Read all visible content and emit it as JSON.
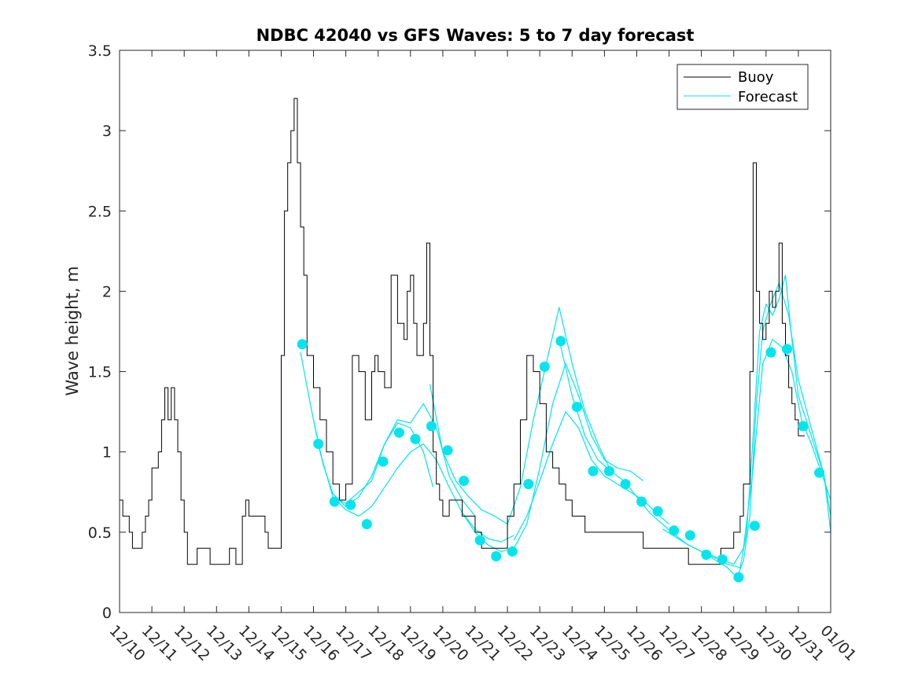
{
  "chart_data": {
    "type": "line",
    "title": "NDBC 42040 vs GFS Waves: 5 to 7 day forecast",
    "xlabel": "",
    "ylabel": "Wave height, m",
    "xlim": [
      0,
      22
    ],
    "ylim": [
      0,
      3.5
    ],
    "x_unit": "days since 12/10",
    "x_ticks": [
      "12/10",
      "12/11",
      "12/12",
      "12/13",
      "12/14",
      "12/15",
      "12/16",
      "12/17",
      "12/18",
      "12/19",
      "12/20",
      "12/21",
      "12/22",
      "12/23",
      "12/24",
      "12/25",
      "12/26",
      "12/27",
      "12/28",
      "12/29",
      "12/30",
      "12/31",
      "01/01"
    ],
    "y_ticks": [
      "0",
      "0.5",
      "1",
      "1.5",
      "2",
      "2.5",
      "3",
      "3.5"
    ],
    "grid": false,
    "legend": {
      "position": "top-right",
      "entries": [
        {
          "name": "Buoy",
          "color": "#000000"
        },
        {
          "name": "Forecast",
          "color": "#00e5ee"
        }
      ]
    },
    "buoy": {
      "name": "Buoy",
      "color": "#000000",
      "x": [
        0,
        0.1,
        0.2,
        0.3,
        0.4,
        0.5,
        0.6,
        0.7,
        0.8,
        0.9,
        1.0,
        1.1,
        1.2,
        1.3,
        1.4,
        1.5,
        1.6,
        1.7,
        1.8,
        1.9,
        2.0,
        2.1,
        2.2,
        2.4,
        2.6,
        2.8,
        3.0,
        3.2,
        3.4,
        3.6,
        3.8,
        3.9,
        4.0,
        4.2,
        4.4,
        4.5,
        4.6,
        4.8,
        5.0,
        5.1,
        5.2,
        5.3,
        5.4,
        5.5,
        5.6,
        5.7,
        5.8,
        5.9,
        6.0,
        6.2,
        6.4,
        6.6,
        6.8,
        7.0,
        7.2,
        7.4,
        7.6,
        7.8,
        7.9,
        8.0,
        8.2,
        8.4,
        8.6,
        8.8,
        8.9,
        9.0,
        9.1,
        9.2,
        9.4,
        9.5,
        9.6,
        9.7,
        9.8,
        9.9,
        10.0,
        10.2,
        10.4,
        10.6,
        10.8,
        11.0,
        11.2,
        11.4,
        11.6,
        11.8,
        12.0,
        12.2,
        12.4,
        12.6,
        12.8,
        13.0,
        13.2,
        13.4,
        13.6,
        13.8,
        14.0,
        14.2,
        14.4,
        14.6,
        14.8,
        15.0,
        15.2,
        15.4,
        15.6,
        15.8,
        16.0,
        16.2,
        16.4,
        16.6,
        16.8,
        17.0,
        17.2,
        17.4,
        17.6,
        17.8,
        18.0,
        18.2,
        18.4,
        18.6,
        18.8,
        19.0,
        19.2,
        19.3,
        19.5,
        19.6,
        19.7,
        19.8,
        19.9,
        20.0,
        20.1,
        20.2,
        20.3,
        20.4,
        20.5,
        20.6,
        20.7,
        20.8,
        20.9,
        21.0,
        21.1,
        21.2
      ],
      "values": [
        0.7,
        0.6,
        0.6,
        0.5,
        0.4,
        0.4,
        0.4,
        0.5,
        0.6,
        0.7,
        0.9,
        0.9,
        1.0,
        1.2,
        1.4,
        1.2,
        1.4,
        1.2,
        1.0,
        0.7,
        0.5,
        0.3,
        0.3,
        0.4,
        0.4,
        0.3,
        0.3,
        0.3,
        0.4,
        0.3,
        0.6,
        0.7,
        0.6,
        0.6,
        0.6,
        0.5,
        0.4,
        0.4,
        1.6,
        2.5,
        2.8,
        3.0,
        3.2,
        2.8,
        2.4,
        2.1,
        1.6,
        1.6,
        1.4,
        1.2,
        1.0,
        0.8,
        0.7,
        0.8,
        1.6,
        1.5,
        1.2,
        1.5,
        1.6,
        1.5,
        1.4,
        2.1,
        1.8,
        1.7,
        2.0,
        2.1,
        1.8,
        1.6,
        1.8,
        2.3,
        1.6,
        1.0,
        0.8,
        0.7,
        0.6,
        0.7,
        0.7,
        0.6,
        0.6,
        0.5,
        0.4,
        0.4,
        0.4,
        0.4,
        0.6,
        0.8,
        1.2,
        1.6,
        1.5,
        1.3,
        1.0,
        0.9,
        0.8,
        0.7,
        0.6,
        0.6,
        0.5,
        0.5,
        0.5,
        0.5,
        0.5,
        0.5,
        0.5,
        0.5,
        0.5,
        0.4,
        0.4,
        0.4,
        0.4,
        0.4,
        0.4,
        0.4,
        0.3,
        0.3,
        0.3,
        0.3,
        0.3,
        0.4,
        0.4,
        0.5,
        0.6,
        0.8,
        1.5,
        2.8,
        2.0,
        1.8,
        1.7,
        1.8,
        2.0,
        1.9,
        2.0,
        2.3,
        1.8,
        1.6,
        1.4,
        1.3,
        1.2,
        1.1,
        1.1,
        1.1
      ]
    },
    "forecast_runs": [
      {
        "name": "Forecast",
        "color": "#00e5ee",
        "x": [
          5.6,
          5.9,
          6.2,
          6.6,
          7.0,
          7.4,
          7.8,
          8.2,
          8.6,
          9.0,
          9.4,
          9.7
        ],
        "values": [
          1.62,
          1.3,
          1.0,
          0.72,
          0.68,
          0.75,
          0.82,
          1.05,
          1.18,
          1.15,
          1.0,
          0.78
        ]
      },
      {
        "name": "Forecast",
        "color": "#00e5ee",
        "x": [
          6.0,
          6.3,
          6.6,
          7.0,
          7.4,
          7.8,
          8.2,
          8.6,
          9.0,
          9.4,
          9.8,
          10.2,
          10.6,
          11.0
        ],
        "values": [
          1.2,
          0.92,
          0.74,
          0.66,
          0.72,
          0.85,
          1.05,
          1.2,
          1.18,
          1.3,
          1.15,
          0.85,
          0.7,
          0.6
        ]
      },
      {
        "name": "Forecast",
        "color": "#00e5ee",
        "x": [
          6.6,
          7.0,
          7.4,
          7.8,
          8.2,
          8.6,
          9.0,
          9.4,
          9.8,
          10.2,
          10.6,
          11.0,
          11.4,
          11.8,
          12.2
        ],
        "values": [
          0.72,
          0.64,
          0.6,
          0.66,
          0.78,
          0.9,
          1.0,
          1.05,
          0.95,
          0.78,
          0.62,
          0.52,
          0.46,
          0.44,
          0.48
        ]
      },
      {
        "name": "Forecast",
        "color": "#00e5ee",
        "x": [
          9.6,
          10.0,
          10.4,
          10.8,
          11.2,
          11.6,
          12.0,
          12.4,
          12.8,
          13.2,
          13.6,
          14.0,
          14.4,
          14.8,
          15.2
        ],
        "values": [
          1.42,
          1.0,
          0.82,
          0.72,
          0.64,
          0.6,
          0.55,
          0.78,
          1.2,
          1.55,
          1.9,
          1.55,
          1.25,
          1.05,
          0.88
        ]
      },
      {
        "name": "Forecast",
        "color": "#00e5ee",
        "x": [
          10.6,
          11.0,
          11.4,
          11.8,
          12.2,
          12.6,
          13.0,
          13.4,
          13.8,
          14.2,
          14.6,
          15.0,
          15.4,
          15.8,
          16.2
        ],
        "values": [
          0.62,
          0.5,
          0.42,
          0.38,
          0.4,
          0.55,
          0.9,
          1.3,
          1.55,
          1.35,
          1.1,
          0.95,
          0.9,
          0.88,
          0.82
        ]
      },
      {
        "name": "Forecast",
        "color": "#00e5ee",
        "x": [
          12.2,
          12.6,
          13.0,
          13.4,
          13.8,
          14.2,
          14.6,
          15.0,
          15.4,
          15.8,
          16.2,
          16.6,
          17.0
        ],
        "values": [
          0.45,
          0.6,
          0.82,
          1.05,
          1.25,
          1.15,
          0.95,
          0.85,
          0.8,
          0.75,
          0.7,
          0.62,
          0.55
        ]
      },
      {
        "name": "Forecast",
        "color": "#00e5ee",
        "x": [
          13.6,
          14.0,
          14.4,
          14.8,
          15.2,
          15.6,
          16.0,
          16.4,
          16.8,
          17.2,
          17.6,
          18.0,
          18.4,
          18.8
        ],
        "values": [
          1.7,
          1.35,
          1.1,
          0.95,
          0.88,
          0.82,
          0.72,
          0.62,
          0.55,
          0.48,
          0.42,
          0.38,
          0.34,
          0.33
        ]
      },
      {
        "name": "Forecast",
        "color": "#00e5ee",
        "x": [
          16.8,
          17.2,
          17.6,
          18.0,
          18.4,
          18.8,
          19.2,
          19.4,
          19.6,
          19.8,
          20.0,
          20.2,
          20.4,
          20.6,
          20.8,
          21.0,
          21.4,
          21.8,
          22.0
        ],
        "values": [
          0.52,
          0.47,
          0.42,
          0.38,
          0.35,
          0.3,
          0.28,
          0.5,
          1.1,
          1.75,
          1.92,
          1.85,
          1.95,
          2.1,
          1.7,
          1.35,
          1.1,
          0.85,
          0.6
        ]
      },
      {
        "name": "Forecast",
        "color": "#00e5ee",
        "x": [
          18.0,
          18.4,
          18.8,
          19.1,
          19.3,
          19.5,
          19.7,
          19.9,
          20.1,
          20.4,
          20.7,
          21.0,
          21.4,
          21.8,
          22.0
        ],
        "values": [
          0.38,
          0.33,
          0.28,
          0.22,
          0.32,
          0.6,
          1.3,
          1.75,
          1.9,
          2.05,
          1.85,
          1.45,
          1.15,
          0.85,
          0.5
        ]
      },
      {
        "name": "Forecast",
        "color": "#00e5ee",
        "x": [
          18.6,
          19.0,
          19.3,
          19.6,
          19.9,
          20.2,
          20.5,
          20.8,
          21.1,
          21.4,
          21.8,
          22.0
        ],
        "values": [
          0.33,
          0.3,
          0.4,
          0.9,
          1.55,
          1.7,
          1.65,
          1.5,
          1.2,
          1.05,
          0.82,
          0.7
        ]
      }
    ],
    "forecast_markers": {
      "name": "Forecast",
      "color": "#00e5ee",
      "x": [
        5.65,
        6.15,
        6.65,
        7.15,
        7.65,
        8.15,
        8.65,
        9.15,
        9.65,
        10.15,
        10.65,
        11.15,
        11.65,
        12.15,
        12.65,
        13.15,
        13.65,
        14.15,
        14.65,
        15.15,
        15.65,
        16.15,
        16.65,
        17.15,
        17.65,
        18.15,
        18.65,
        19.15,
        19.65,
        20.15,
        20.65,
        21.15,
        21.65
      ],
      "values": [
        1.67,
        1.05,
        0.69,
        0.67,
        0.55,
        0.94,
        1.12,
        1.08,
        1.16,
        1.01,
        0.82,
        0.45,
        0.35,
        0.38,
        0.8,
        1.53,
        1.69,
        1.28,
        0.88,
        0.88,
        0.8,
        0.69,
        0.63,
        0.51,
        0.48,
        0.36,
        0.33,
        0.22,
        0.54,
        1.62,
        1.64,
        1.16,
        0.87
      ]
    }
  }
}
